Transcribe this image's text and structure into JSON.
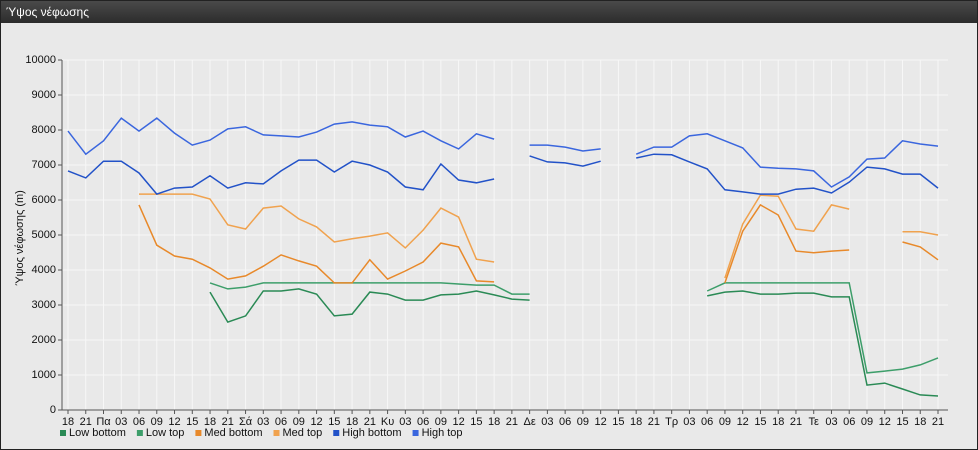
{
  "window": {
    "title": "Ύψος νέφωσης"
  },
  "chart_data": {
    "type": "line",
    "y_label": "Ύψος νέφωσης (m)",
    "ylim": [
      0,
      10000
    ],
    "yticks": [
      0,
      1000,
      2000,
      3000,
      4000,
      5000,
      6000,
      7000,
      8000,
      9000,
      10000
    ],
    "grid": true,
    "legend": "bottom-left",
    "categories": [
      "18",
      "21",
      "Πα",
      "03",
      "06",
      "09",
      "12",
      "15",
      "18",
      "21",
      "Σά",
      "03",
      "06",
      "09",
      "12",
      "15",
      "18",
      "21",
      "Κυ",
      "03",
      "06",
      "09",
      "12",
      "15",
      "18",
      "21",
      "Δε",
      "03",
      "06",
      "09",
      "12",
      "15",
      "18",
      "21",
      "Τρ",
      "03",
      "06",
      "09",
      "12",
      "15",
      "18",
      "21",
      "Τε",
      "03",
      "06",
      "09",
      "12",
      "15",
      "18",
      "21"
    ],
    "series": [
      {
        "name": "Low bottom",
        "color": "#2a8a55",
        "values": [
          null,
          null,
          null,
          null,
          null,
          null,
          null,
          null,
          3370,
          2510,
          2690,
          3400,
          3400,
          3460,
          3310,
          2690,
          2740,
          3370,
          3310,
          3140,
          3140,
          3290,
          3310,
          3400,
          3290,
          3170,
          3140,
          null,
          null,
          null,
          null,
          null,
          null,
          null,
          null,
          null,
          3260,
          3370,
          3400,
          3310,
          3310,
          3340,
          3340,
          3230,
          3230,
          710,
          770,
          600,
          430,
          400
        ]
      },
      {
        "name": "Low top",
        "color": "#3d9e6a",
        "values": [
          null,
          null,
          null,
          null,
          null,
          null,
          null,
          null,
          3630,
          3460,
          3510,
          3630,
          3630,
          3630,
          3630,
          3630,
          3630,
          3630,
          3630,
          3630,
          3630,
          3630,
          3600,
          3570,
          3570,
          3310,
          3310,
          null,
          null,
          null,
          null,
          null,
          null,
          null,
          null,
          null,
          3400,
          3630,
          3630,
          3630,
          3630,
          3630,
          3630,
          3630,
          3630,
          1060,
          1110,
          1170,
          1290,
          1490
        ]
      },
      {
        "name": "Med bottom",
        "color": "#e8892a",
        "values": [
          null,
          null,
          null,
          null,
          5860,
          4710,
          4400,
          4310,
          4060,
          3740,
          3830,
          4110,
          4430,
          4260,
          4110,
          3630,
          3630,
          4290,
          3740,
          3970,
          4230,
          4770,
          4660,
          3690,
          3660,
          null,
          null,
          null,
          null,
          null,
          null,
          null,
          null,
          null,
          null,
          null,
          null,
          3630,
          5110,
          5860,
          5570,
          4540,
          4490,
          4540,
          4570,
          null,
          null,
          4800,
          4660,
          4290
        ]
      },
      {
        "name": "Med top",
        "color": "#f0a24e",
        "values": [
          null,
          null,
          null,
          null,
          6170,
          6170,
          6170,
          6170,
          6030,
          5290,
          5170,
          5770,
          5830,
          5460,
          5230,
          4800,
          4890,
          4970,
          5060,
          4630,
          5140,
          5770,
          5510,
          4310,
          4230,
          null,
          null,
          null,
          null,
          null,
          null,
          null,
          null,
          null,
          null,
          null,
          null,
          3770,
          5310,
          6140,
          6110,
          5170,
          5110,
          5860,
          5740,
          null,
          null,
          5090,
          5090,
          5000
        ]
      },
      {
        "name": "High bottom",
        "color": "#2252c8",
        "values": [
          6830,
          6630,
          7110,
          7110,
          6770,
          6170,
          6340,
          6370,
          6690,
          6340,
          6490,
          6460,
          6830,
          7140,
          7140,
          6800,
          7110,
          7000,
          6800,
          6370,
          6290,
          7030,
          6570,
          6490,
          6600,
          null,
          7260,
          7090,
          7060,
          6970,
          7110,
          null,
          7200,
          7310,
          7290,
          7090,
          6890,
          6290,
          6230,
          6170,
          6170,
          6310,
          6340,
          6200,
          6510,
          6940,
          6890,
          6740,
          6740,
          6340
        ]
      },
      {
        "name": "High top",
        "color": "#3a66de",
        "values": [
          7970,
          7310,
          7690,
          8340,
          7970,
          8340,
          7910,
          7570,
          7710,
          8030,
          8090,
          7860,
          7830,
          7800,
          7940,
          8170,
          8230,
          8140,
          8090,
          7800,
          7970,
          7690,
          7460,
          7890,
          7740,
          null,
          7570,
          7570,
          7510,
          7400,
          7460,
          null,
          7310,
          7510,
          7510,
          7830,
          7890,
          7690,
          7490,
          6940,
          6910,
          6890,
          6830,
          6370,
          6660,
          7170,
          7200,
          7690,
          7600,
          7540
        ]
      }
    ]
  }
}
